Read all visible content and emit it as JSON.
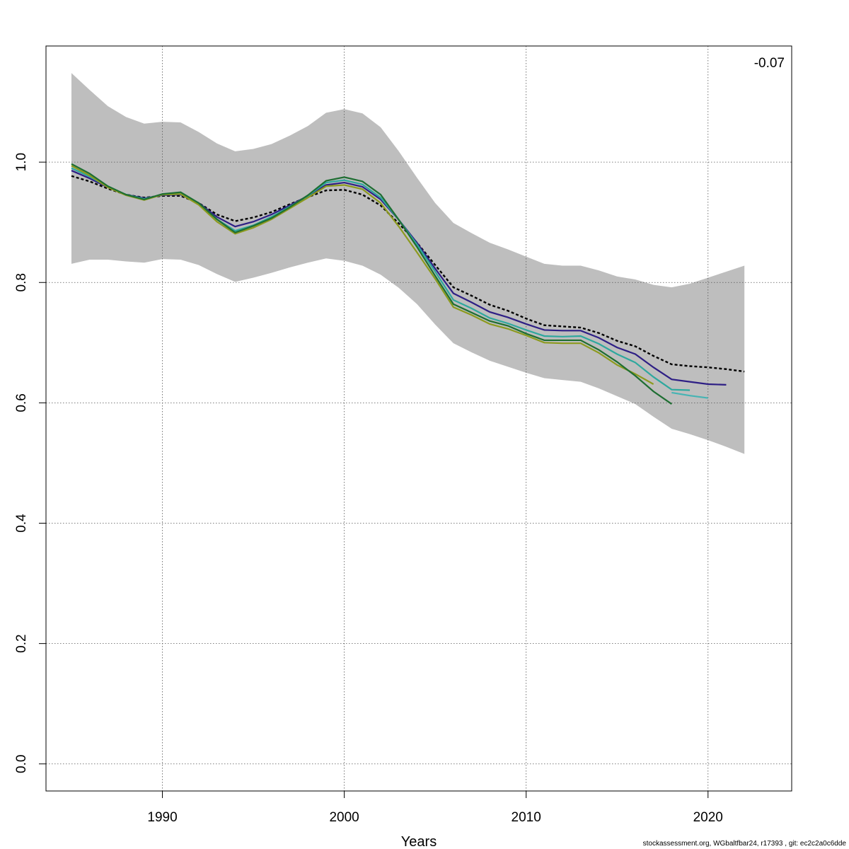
{
  "chart_data": {
    "type": "line",
    "title": "",
    "xlabel": "Years",
    "ylabel": "",
    "xlim": [
      1983.6,
      2024.6
    ],
    "ylim": [
      -0.045,
      1.193
    ],
    "xticks": [
      1990,
      2000,
      2010,
      2020
    ],
    "yticks": [
      0.0,
      0.2,
      0.4,
      0.6,
      0.8,
      1.0
    ],
    "ytick_labels": [
      "0.0",
      "0.2",
      "0.4",
      "0.6",
      "0.8",
      "1.0"
    ],
    "grid": true,
    "annotation": "-0.07",
    "band": {
      "color": "#bebebe",
      "x": [
        1985,
        1986,
        1987,
        1988,
        1989,
        1990,
        1991,
        1992,
        1993,
        1994,
        1995,
        1996,
        1997,
        1998,
        1999,
        2000,
        2001,
        2002,
        2003,
        2004,
        2005,
        2006,
        2007,
        2008,
        2009,
        2010,
        2011,
        2012,
        2013,
        2014,
        2015,
        2016,
        2017,
        2018,
        2019,
        2020,
        2021,
        2022
      ],
      "upper": [
        1.148,
        1.12,
        1.093,
        1.075,
        1.064,
        1.067,
        1.066,
        1.05,
        1.031,
        1.018,
        1.022,
        1.03,
        1.044,
        1.06,
        1.082,
        1.088,
        1.081,
        1.058,
        1.018,
        0.974,
        0.932,
        0.899,
        0.882,
        0.866,
        0.855,
        0.843,
        0.831,
        0.828,
        0.828,
        0.82,
        0.81,
        0.805,
        0.796,
        0.792,
        0.798,
        0.808,
        0.818,
        0.828
      ],
      "lower": [
        0.831,
        0.838,
        0.838,
        0.835,
        0.833,
        0.839,
        0.838,
        0.829,
        0.814,
        0.801,
        0.808,
        0.816,
        0.825,
        0.833,
        0.84,
        0.836,
        0.828,
        0.813,
        0.791,
        0.764,
        0.73,
        0.699,
        0.684,
        0.67,
        0.66,
        0.65,
        0.641,
        0.638,
        0.635,
        0.624,
        0.611,
        0.598,
        0.577,
        0.557,
        0.548,
        0.538,
        0.527,
        0.515
      ]
    },
    "series": [
      {
        "color": "#000000",
        "dashed": true,
        "x": [
          1985,
          1986,
          1987,
          1988,
          1989,
          1990,
          1991,
          1992,
          1993,
          1994,
          1995,
          1996,
          1997,
          1998,
          1999,
          2000,
          2001,
          2002,
          2003,
          2004,
          2005,
          2006,
          2007,
          2008,
          2009,
          2010,
          2011,
          2012,
          2013,
          2014,
          2015,
          2016,
          2017,
          2018,
          2019,
          2020,
          2021,
          2022
        ],
        "values": [
          0.977,
          0.968,
          0.956,
          0.946,
          0.941,
          0.944,
          0.944,
          0.932,
          0.913,
          0.902,
          0.908,
          0.917,
          0.93,
          0.942,
          0.953,
          0.954,
          0.946,
          0.928,
          0.898,
          0.866,
          0.829,
          0.792,
          0.778,
          0.763,
          0.753,
          0.74,
          0.729,
          0.727,
          0.725,
          0.716,
          0.703,
          0.694,
          0.678,
          0.664,
          0.661,
          0.659,
          0.656,
          0.652
        ]
      },
      {
        "color": "#2e1f85",
        "dashed": false,
        "x": [
          1985,
          1986,
          1987,
          1988,
          1989,
          1990,
          1991,
          1992,
          1993,
          1994,
          1995,
          1996,
          1997,
          1998,
          1999,
          2000,
          2001,
          2002,
          2003,
          2004,
          2005,
          2006,
          2007,
          2008,
          2009,
          2010,
          2011,
          2012,
          2013,
          2014,
          2015,
          2016,
          2017,
          2018,
          2019,
          2020,
          2021
        ],
        "values": [
          0.986,
          0.973,
          0.958,
          0.946,
          0.94,
          0.945,
          0.946,
          0.932,
          0.909,
          0.893,
          0.901,
          0.913,
          0.928,
          0.944,
          0.962,
          0.966,
          0.959,
          0.938,
          0.904,
          0.866,
          0.823,
          0.782,
          0.767,
          0.751,
          0.742,
          0.731,
          0.721,
          0.72,
          0.72,
          0.708,
          0.692,
          0.681,
          0.659,
          0.639,
          0.635,
          0.631,
          0.63
        ]
      },
      {
        "color": "#46b4b4",
        "dashed": false,
        "x": [
          2018,
          2019,
          2020
        ],
        "values": [
          0.617,
          0.612,
          0.608
        ]
      },
      {
        "color": "#2ea89e",
        "dashed": false,
        "x": [
          1985,
          1986,
          1987,
          1988,
          1989,
          1990,
          1991,
          1992,
          1993,
          1994,
          1995,
          1996,
          1997,
          1998,
          1999,
          2000,
          2001,
          2002,
          2003,
          2004,
          2005,
          2006,
          2007,
          2008,
          2009,
          2010,
          2011,
          2012,
          2013,
          2014,
          2015,
          2016,
          2017,
          2018,
          2019
        ],
        "values": [
          0.99,
          0.976,
          0.959,
          0.946,
          0.939,
          0.946,
          0.947,
          0.931,
          0.905,
          0.886,
          0.895,
          0.909,
          0.926,
          0.944,
          0.966,
          0.97,
          0.963,
          0.941,
          0.904,
          0.863,
          0.818,
          0.771,
          0.757,
          0.741,
          0.732,
          0.721,
          0.711,
          0.71,
          0.711,
          0.698,
          0.681,
          0.667,
          0.643,
          0.622,
          0.621
        ]
      },
      {
        "color": "#8c9a1e",
        "dashed": false,
        "x": [
          1985,
          1986,
          1987,
          1988,
          1989,
          1990,
          1991,
          1992,
          1993,
          1994,
          1995,
          1996,
          1997,
          1998,
          1999,
          2000,
          2001,
          2002,
          2003,
          2004,
          2005,
          2006,
          2007,
          2008,
          2009,
          2010,
          2011,
          2012,
          2013,
          2014,
          2015,
          2016,
          2017
        ],
        "values": [
          0.994,
          0.978,
          0.958,
          0.945,
          0.937,
          0.946,
          0.947,
          0.929,
          0.901,
          0.881,
          0.891,
          0.905,
          0.923,
          0.941,
          0.96,
          0.962,
          0.955,
          0.932,
          0.893,
          0.85,
          0.806,
          0.759,
          0.746,
          0.731,
          0.723,
          0.712,
          0.7,
          0.699,
          0.699,
          0.683,
          0.663,
          0.648,
          0.631
        ]
      },
      {
        "color": "#1e6e32",
        "dashed": false,
        "x": [
          1985,
          1986,
          1987,
          1988,
          1989,
          1990,
          1991,
          1992,
          1993,
          1994,
          1995,
          1996,
          1997,
          1998,
          1999,
          2000,
          2001,
          2002,
          2003,
          2004,
          2005,
          2006,
          2007,
          2008,
          2009,
          2010,
          2011,
          2012,
          2013,
          2014,
          2015,
          2016,
          2017,
          2018
        ],
        "values": [
          0.997,
          0.981,
          0.96,
          0.946,
          0.938,
          0.947,
          0.95,
          0.932,
          0.905,
          0.883,
          0.894,
          0.907,
          0.925,
          0.945,
          0.969,
          0.975,
          0.968,
          0.946,
          0.904,
          0.859,
          0.811,
          0.764,
          0.75,
          0.736,
          0.728,
          0.715,
          0.704,
          0.704,
          0.704,
          0.688,
          0.668,
          0.645,
          0.619,
          0.598
        ]
      }
    ]
  },
  "footer": "stockassessment.org, WGbaltfbar24, r17393 , git: ec2c2a0c6dde"
}
